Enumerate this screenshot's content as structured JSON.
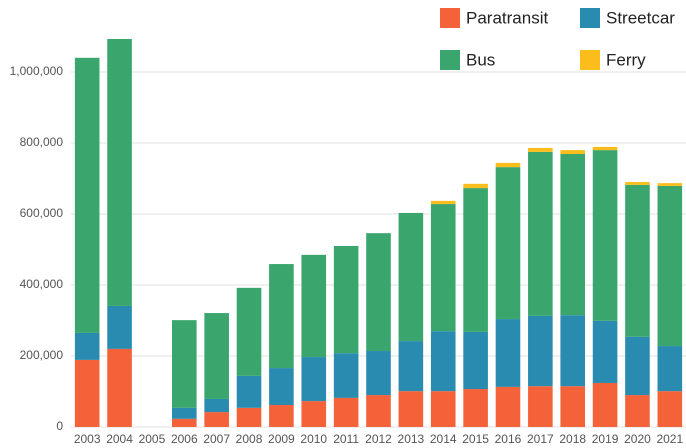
{
  "chart_data": {
    "type": "stacked_bar",
    "categories": [
      "2003",
      "2004",
      "2005",
      "2006",
      "2007",
      "2008",
      "2009",
      "2010",
      "2011",
      "2012",
      "2013",
      "2014",
      "2015",
      "2016",
      "2017",
      "2018",
      "2019",
      "2020",
      "2021"
    ],
    "series": [
      {
        "name": "Paratransit",
        "color": "#f4623a",
        "values": [
          189000,
          220000,
          null,
          23000,
          42000,
          54000,
          62000,
          73000,
          82000,
          90000,
          101000,
          101000,
          107000,
          113000,
          115000,
          115000,
          124000,
          90000,
          101000
        ]
      },
      {
        "name": "Streetcar",
        "color": "#2a8bb0",
        "values": [
          76000,
          121000,
          null,
          31000,
          37000,
          90000,
          104000,
          124000,
          126000,
          124000,
          141000,
          169000,
          161000,
          191000,
          198000,
          200000,
          175000,
          164000,
          127000
        ]
      },
      {
        "name": "Bus",
        "color": "#3aa66e",
        "values": [
          775000,
          752000,
          null,
          247000,
          242000,
          248000,
          293000,
          288000,
          302000,
          332000,
          361000,
          358000,
          405000,
          428000,
          462000,
          454000,
          481000,
          428000,
          451000
        ]
      },
      {
        "name": "Ferry",
        "color": "#fbbd1c",
        "values": [
          0,
          0,
          null,
          0,
          0,
          0,
          0,
          0,
          0,
          0,
          0,
          9000,
          12000,
          12000,
          11000,
          11000,
          9000,
          8000,
          8000
        ]
      }
    ],
    "ylim": [
      0,
      1100000
    ],
    "yticks": [
      0,
      {
        "value": 200000,
        "label": "200,000"
      },
      {
        "value": 400000,
        "label": "400,000"
      },
      {
        "value": 600000,
        "label": "600,000"
      },
      {
        "value": 800000,
        "label": "800,000"
      },
      {
        "value": 1000000,
        "label": "1,000,000"
      }
    ],
    "grid": true,
    "legend": "top-right"
  }
}
